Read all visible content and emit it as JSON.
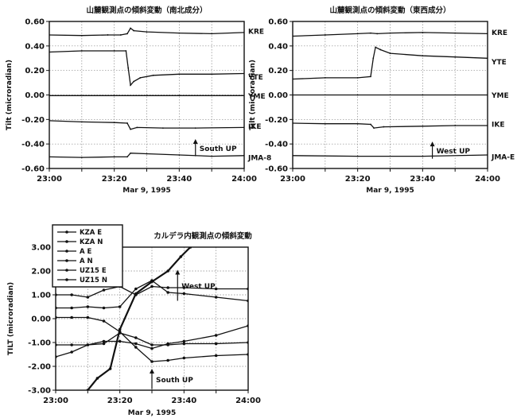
{
  "chart_data": [
    {
      "type": "line",
      "title": "山麓観測点の傾斜変動（南北成分）",
      "xlabel": "Mar 9, 1995",
      "ylabel": "Tilt (microradian)",
      "xticks": [
        "23:00",
        "23:20",
        "23:40",
        "24:00"
      ],
      "xlim": [
        0,
        60
      ],
      "ylim": [
        -0.6,
        0.6
      ],
      "yticks": [
        "0.60",
        "0.40",
        "0.20",
        "0.00",
        "-0.20",
        "-0.40",
        "-0.60"
      ],
      "grid": true,
      "annotation": {
        "text": "South UP",
        "x": 45,
        "y_tail": -0.5,
        "y_head": -0.36
      },
      "series": [
        {
          "name": "KRE",
          "points": [
            [
              0,
              0.49
            ],
            [
              10,
              0.485
            ],
            [
              18,
              0.49
            ],
            [
              22,
              0.49
            ],
            [
              24,
              0.5
            ],
            [
              25,
              0.545
            ],
            [
              26,
              0.525
            ],
            [
              30,
              0.515
            ],
            [
              40,
              0.505
            ],
            [
              50,
              0.5
            ],
            [
              60,
              0.51
            ]
          ]
        },
        {
          "name": "YTE",
          "points": [
            [
              0,
              0.35
            ],
            [
              10,
              0.36
            ],
            [
              20,
              0.36
            ],
            [
              23.6,
              0.36
            ],
            [
              24.3,
              0.22
            ],
            [
              25,
              0.08
            ],
            [
              26,
              0.11
            ],
            [
              28,
              0.14
            ],
            [
              32,
              0.16
            ],
            [
              40,
              0.17
            ],
            [
              50,
              0.17
            ],
            [
              60,
              0.175
            ]
          ]
        },
        {
          "name": "YME",
          "points": [
            [
              0,
              -0.005
            ],
            [
              20,
              -0.005
            ],
            [
              40,
              -0.005
            ],
            [
              60,
              -0.005
            ]
          ]
        },
        {
          "name": "IKE",
          "points": [
            [
              0,
              -0.21
            ],
            [
              10,
              -0.22
            ],
            [
              20,
              -0.225
            ],
            [
              24,
              -0.23
            ],
            [
              25,
              -0.28
            ],
            [
              27,
              -0.265
            ],
            [
              35,
              -0.27
            ],
            [
              45,
              -0.27
            ],
            [
              60,
              -0.265
            ]
          ]
        },
        {
          "name": "JMA-8",
          "points": [
            [
              0,
              -0.505
            ],
            [
              10,
              -0.51
            ],
            [
              20,
              -0.505
            ],
            [
              24,
              -0.505
            ],
            [
              25,
              -0.475
            ],
            [
              30,
              -0.48
            ],
            [
              40,
              -0.49
            ],
            [
              50,
              -0.5
            ],
            [
              60,
              -0.495
            ]
          ]
        }
      ]
    },
    {
      "type": "line",
      "title": "山麓観測点の傾斜変動（東西成分）",
      "xlabel": "Mar 9, 1995",
      "ylabel": "Tilt (microradian)",
      "xticks": [
        "23:00",
        "23:20",
        "23:40",
        "24:00"
      ],
      "xlim": [
        0,
        60
      ],
      "ylim": [
        -0.6,
        0.6
      ],
      "yticks": [
        "0.60",
        "0.40",
        "0.20",
        "0.00",
        "-0.20",
        "-0.40",
        "-0.60"
      ],
      "grid": true,
      "annotation": {
        "text": "West UP",
        "x": 43,
        "y_tail": -0.52,
        "y_head": -0.38
      },
      "series": [
        {
          "name": "KRE",
          "points": [
            [
              0,
              0.48
            ],
            [
              10,
              0.49
            ],
            [
              20,
              0.5
            ],
            [
              24,
              0.505
            ],
            [
              26,
              0.5
            ],
            [
              30,
              0.505
            ],
            [
              40,
              0.51
            ],
            [
              50,
              0.505
            ],
            [
              60,
              0.5
            ]
          ]
        },
        {
          "name": "YTE",
          "points": [
            [
              0,
              0.13
            ],
            [
              10,
              0.14
            ],
            [
              20,
              0.14
            ],
            [
              24,
              0.15
            ],
            [
              24.8,
              0.3
            ],
            [
              25.5,
              0.39
            ],
            [
              27,
              0.37
            ],
            [
              30,
              0.34
            ],
            [
              40,
              0.32
            ],
            [
              50,
              0.31
            ],
            [
              60,
              0.3
            ]
          ]
        },
        {
          "name": "YME",
          "points": [
            [
              0,
              0.0
            ],
            [
              20,
              0.0
            ],
            [
              40,
              0.0
            ],
            [
              60,
              0.0
            ]
          ]
        },
        {
          "name": "IKE",
          "points": [
            [
              0,
              -0.23
            ],
            [
              10,
              -0.235
            ],
            [
              20,
              -0.235
            ],
            [
              24,
              -0.24
            ],
            [
              25,
              -0.27
            ],
            [
              28,
              -0.26
            ],
            [
              40,
              -0.255
            ],
            [
              50,
              -0.25
            ],
            [
              60,
              -0.25
            ]
          ]
        },
        {
          "name": "JMA-E",
          "points": [
            [
              0,
              -0.495
            ],
            [
              20,
              -0.5
            ],
            [
              40,
              -0.5
            ],
            [
              60,
              -0.49
            ]
          ]
        }
      ]
    },
    {
      "type": "line",
      "title": "カルデラ内観測点の傾斜変動",
      "xlabel": "Mar 9, 1995",
      "ylabel": "TILT (microradian)",
      "xticks": [
        "23:00",
        "23:20",
        "23:40",
        "24:00"
      ],
      "xlim": [
        0,
        60
      ],
      "ylim": [
        -3,
        3
      ],
      "yticks": [
        "3.00",
        "2.00",
        "1.00",
        "0.00",
        "-1.00",
        "-2.00",
        "-3.00"
      ],
      "grid": true,
      "legend": "top-left",
      "annotations": [
        {
          "text": "West UP",
          "x": 38,
          "y_tail": 0.75,
          "y_head": 2.05
        },
        {
          "text": "South UP",
          "x": 30,
          "y_tail": -2.95,
          "y_head": -2.1
        }
      ],
      "series": [
        {
          "name": "KZA E",
          "points": [
            [
              0,
              1.0
            ],
            [
              5,
              1.0
            ],
            [
              10,
              0.9
            ],
            [
              15,
              1.2
            ],
            [
              20,
              1.35
            ],
            [
              25,
              1.0
            ],
            [
              30,
              1.35
            ],
            [
              35,
              1.3
            ],
            [
              40,
              1.3
            ],
            [
              50,
              1.25
            ],
            [
              60,
              1.25
            ]
          ]
        },
        {
          "name": "KZA N",
          "points": [
            [
              0,
              0.45
            ],
            [
              5,
              0.45
            ],
            [
              10,
              0.5
            ],
            [
              15,
              0.45
            ],
            [
              20,
              0.5
            ],
            [
              25,
              1.25
            ],
            [
              30,
              1.6
            ],
            [
              35,
              1.1
            ],
            [
              40,
              1.05
            ],
            [
              50,
              0.9
            ],
            [
              60,
              0.75
            ]
          ]
        },
        {
          "name": "A E",
          "points": [
            [
              0,
              0.05
            ],
            [
              5,
              0.05
            ],
            [
              10,
              0.05
            ],
            [
              15,
              -0.1
            ],
            [
              20,
              -0.55
            ],
            [
              25,
              -1.2
            ],
            [
              30,
              -1.8
            ],
            [
              35,
              -1.75
            ],
            [
              40,
              -1.65
            ],
            [
              50,
              -1.55
            ],
            [
              60,
              -1.5
            ]
          ]
        },
        {
          "name": "A N",
          "points": [
            [
              0,
              -1.1
            ],
            [
              5,
              -1.1
            ],
            [
              10,
              -1.1
            ],
            [
              15,
              -0.95
            ],
            [
              20,
              -0.95
            ],
            [
              25,
              -1.05
            ],
            [
              30,
              -1.25
            ],
            [
              35,
              -1.05
            ],
            [
              40,
              -0.95
            ],
            [
              50,
              -0.7
            ],
            [
              60,
              -0.3
            ]
          ]
        },
        {
          "name": "UZ15 E",
          "points": [
            [
              0,
              -1.6
            ],
            [
              5,
              -1.4
            ],
            [
              10,
              -1.1
            ],
            [
              15,
              -1.05
            ],
            [
              20,
              -0.6
            ],
            [
              25,
              -0.8
            ],
            [
              30,
              -1.1
            ],
            [
              35,
              -1.1
            ],
            [
              40,
              -1.05
            ],
            [
              50,
              -1.05
            ],
            [
              60,
              -1.0
            ]
          ]
        },
        {
          "name": "UZ15 N",
          "points": [
            [
              10,
              -3.0
            ],
            [
              13,
              -2.5
            ],
            [
              17,
              -2.1
            ],
            [
              20,
              -0.45
            ],
            [
              25,
              1.05
            ],
            [
              30,
              1.55
            ],
            [
              35,
              2.0
            ],
            [
              39,
              2.6
            ],
            [
              42,
              3.0
            ]
          ]
        }
      ]
    }
  ]
}
